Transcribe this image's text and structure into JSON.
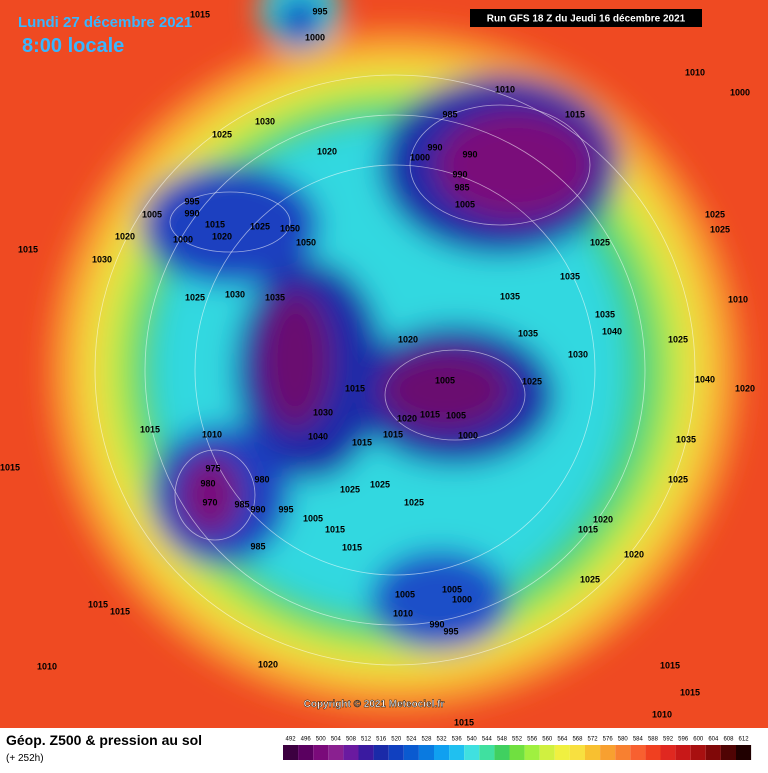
{
  "header": {
    "date": "Lundi 27 décembre 2021",
    "time": "8:00 locale",
    "run": "Run GFS 18 Z du Jeudi 16 décembre 2021"
  },
  "copyright": "Copyright © 2021 Meteociel.fr",
  "footer": {
    "title": "Géop. Z500 & pression au sol",
    "lead": "(+ 252h)"
  },
  "pressure_labels": [
    "1015",
    "995",
    "1000",
    "1030",
    "1025",
    "1020",
    "1010",
    "1010",
    "1000",
    "985",
    "990",
    "1000",
    "990",
    "990",
    "985",
    "1005",
    "1015",
    "1025",
    "1025",
    "1025",
    "1015",
    "1005",
    "995",
    "990",
    "1015",
    "1020",
    "1000",
    "1025",
    "1050",
    "1050",
    "1020",
    "1030",
    "1025",
    "1030",
    "1035",
    "1035",
    "1035",
    "1035",
    "1020",
    "1035",
    "1040",
    "1030",
    "1025",
    "1010",
    "1005",
    "1025",
    "1040",
    "1020",
    "1015",
    "1020",
    "1015",
    "1005",
    "1000",
    "1015",
    "1035",
    "1030",
    "1040",
    "1015",
    "1015",
    "1010",
    "975",
    "980",
    "970",
    "985",
    "990",
    "980",
    "995",
    "1005",
    "1015",
    "1025",
    "1025",
    "1025",
    "1025",
    "1015",
    "1020",
    "1015",
    "1020",
    "1015",
    "985",
    "1005",
    "1005",
    "1000",
    "1010",
    "990",
    "995",
    "1025",
    "1015",
    "1015",
    "1010",
    "1020",
    "1015",
    "1015",
    "1010",
    "1015"
  ],
  "scale": {
    "values": [
      492,
      496,
      500,
      504,
      508,
      512,
      516,
      520,
      524,
      528,
      532,
      536,
      540,
      544,
      548,
      552,
      556,
      560,
      564,
      568,
      572,
      576,
      580,
      584,
      588,
      592,
      596,
      600,
      604,
      608,
      612
    ],
    "colors": [
      "#3c0040",
      "#5a0060",
      "#7a0a7a",
      "#8a2090",
      "#6a1aa0",
      "#3a1aa0",
      "#1a2aa8",
      "#1040c0",
      "#0a5ad0",
      "#0a7ae0",
      "#10a0f0",
      "#20c0f0",
      "#40e0e0",
      "#40e0a0",
      "#40d060",
      "#70e040",
      "#a0f040",
      "#d0f040",
      "#f0f040",
      "#f8e040",
      "#f8c030",
      "#f8a030",
      "#f88030",
      "#f86030",
      "#f04020",
      "#e02820",
      "#c81818",
      "#a81010",
      "#800808",
      "#500404",
      "#200000"
    ]
  }
}
